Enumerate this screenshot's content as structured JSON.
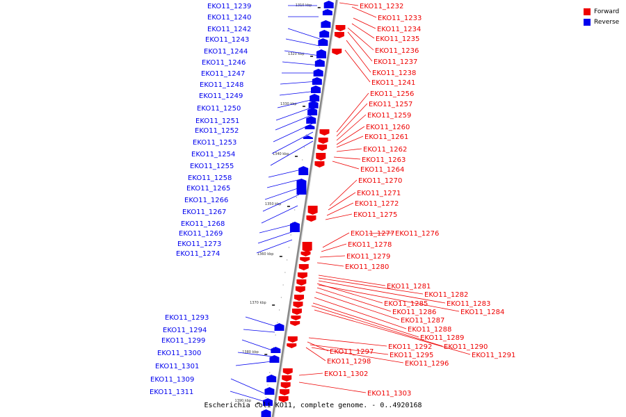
{
  "legend": {
    "items": [
      {
        "label": "Forward",
        "color": "#ee0000"
      },
      {
        "label": "Reverse",
        "color": "#0000ee"
      }
    ]
  },
  "caption": "Escherichia coli KO11, complete genome. - 0..4920168",
  "colors": {
    "forward": "#ee0000",
    "reverse": "#0000ee",
    "backbone": "#888888"
  },
  "ticks": [
    "1310 kbp",
    "1320 kbp",
    "1330 kbp",
    "1340 kbp",
    "1350 kbp",
    "1360 kbp",
    "1370 kbp",
    "1380 kbp",
    "1390 kbp"
  ],
  "reverse_genes": [
    "EKO11_1239",
    "EKO11_1240",
    "EKO11_1242",
    "EKO11_1243",
    "EKO11_1244",
    "EKO11_1246",
    "EKO11_1247",
    "EKO11_1248",
    "EKO11_1249",
    "EKO11_1250",
    "EKO11_1251",
    "EKO11_1252",
    "EKO11_1253",
    "EKO11_1254",
    "EKO11_1255",
    "EKO11_1258",
    "EKO11_1265",
    "EKO11_1266",
    "EKO11_1267",
    "EKO11_1268",
    "EKO11_1269",
    "EKO11_1273",
    "EKO11_1274",
    "EKO11_1293",
    "EKO11_1294",
    "EKO11_1299",
    "EKO11_1300",
    "EKO11_1301",
    "EKO11_1309",
    "EKO11_1311"
  ],
  "forward_genes": [
    "EKO11_1232",
    "EKO11_1233",
    "EKO11_1234",
    "EKO11_1235",
    "EKO11_1236",
    "EKO11_1237",
    "EKO11_1238",
    "EKO11_1241",
    "EKO11_1256",
    "EKO11_1257",
    "EKO11_1259",
    "EKO11_1260",
    "EKO11_1261",
    "EKO11_1262",
    "EKO11_1263",
    "EKO11_1264",
    "EKO11_1270",
    "EKO11_1271",
    "EKO11_1272",
    "EKO11_1275",
    "EKO11_1277",
    "EKO11_1276",
    "EKO11_1278",
    "EKO11_1279",
    "EKO11_1280",
    "EKO11_1281",
    "EKO11_1282",
    "EKO11_1285",
    "EKO11_1283",
    "EKO11_1286",
    "EKO11_1284",
    "EKO11_1287",
    "EKO11_1288",
    "EKO11_1289",
    "EKO11_1292",
    "EKO11_1290",
    "EKO11_1297",
    "EKO11_1295",
    "EKO11_1291",
    "EKO11_1298",
    "EKO11_1296",
    "EKO11_1302",
    "EKO11_1303"
  ]
}
